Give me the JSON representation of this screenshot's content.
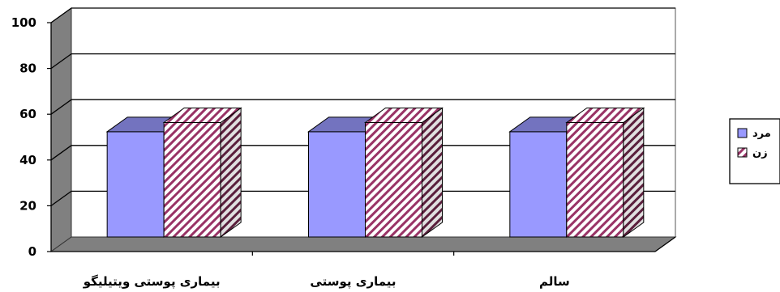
{
  "chart_data": {
    "type": "bar",
    "categories": [
      "بیماری پوستی ویتیلیگو",
      "بیماری پوستی",
      "سالم"
    ],
    "series": [
      {
        "name": "مرد",
        "values": [
          46,
          46,
          46
        ],
        "color": "#9999ff",
        "pattern": "solid"
      },
      {
        "name": "زن",
        "values": [
          50,
          50,
          50
        ],
        "color": "#993366",
        "pattern": "diagonal-hatch"
      }
    ],
    "ylim": [
      0,
      100
    ],
    "yticks": [
      0,
      20,
      40,
      60,
      80,
      100
    ],
    "grid": true,
    "three_d": true,
    "legend_position": "right",
    "title": "",
    "xlabel": "",
    "ylabel": ""
  }
}
